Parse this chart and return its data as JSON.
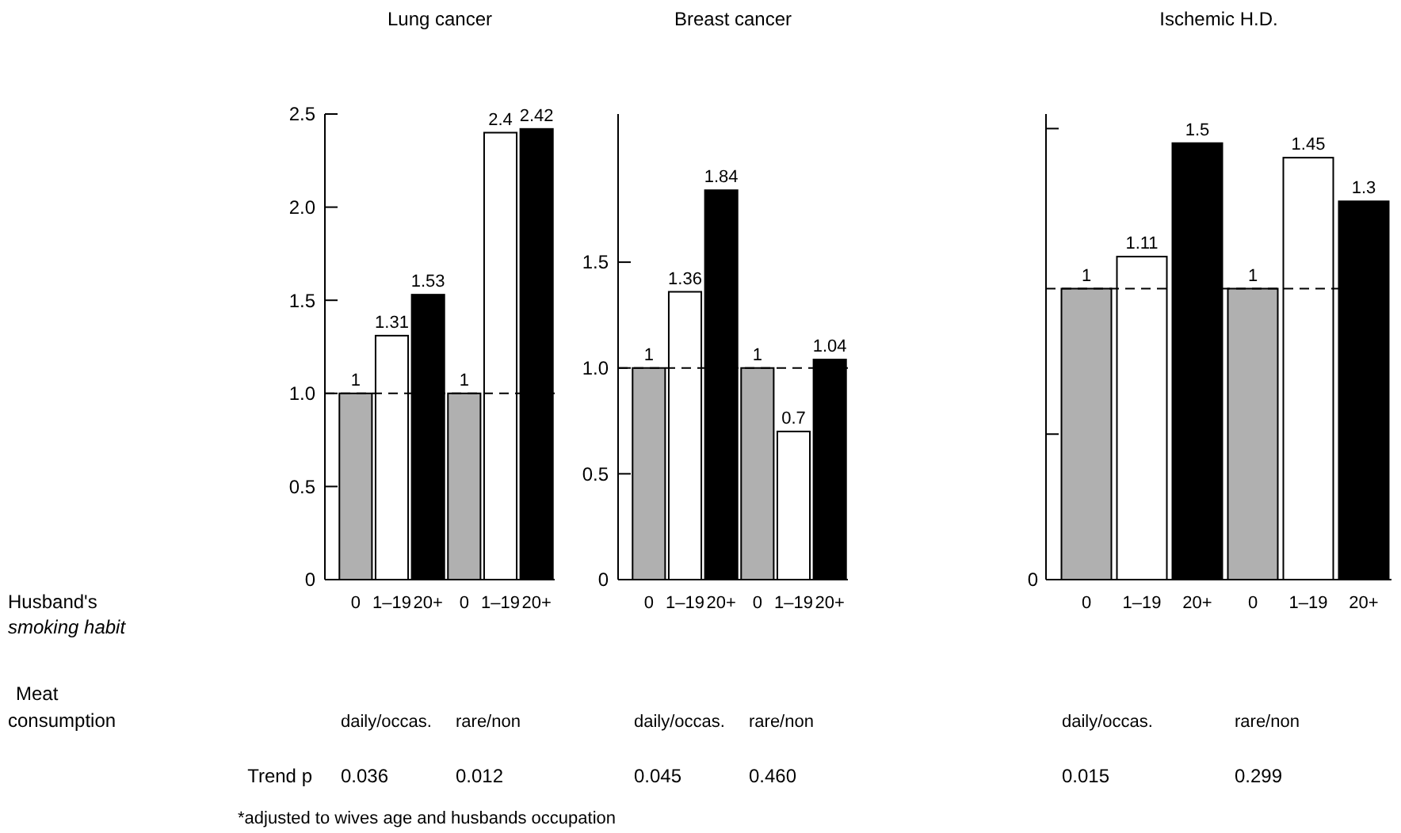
{
  "chart_data": [
    {
      "type": "bar",
      "title": "Lung cancer",
      "categories": [
        "0",
        "1–19",
        "20+",
        "0",
        "1–19",
        "20+"
      ],
      "values": [
        1,
        1.31,
        1.53,
        1,
        2.4,
        2.42
      ],
      "colors": [
        "#b0b0b0",
        "#ffffff",
        "#000000",
        "#b0b0b0",
        "#ffffff",
        "#000000"
      ],
      "data_labels": true,
      "ylim": [
        0,
        2.5
      ],
      "yticks": [
        0,
        0.5,
        {
          "value": 1,
          "label": "1.0"
        },
        1.5,
        {
          "value": 2,
          "label": "2.0"
        },
        2.5
      ],
      "ref_lines": [
        {
          "axis": "y",
          "value": 1,
          "line_style": "dashed"
        }
      ],
      "annotations": [
        "daily/occas.",
        "rare/non",
        "0.036",
        "0.012",
        "Meat consumption",
        "Trend p",
        "*adjusted to wives age and husbands occupation",
        "Husband's smoking habit"
      ]
    },
    {
      "type": "bar",
      "title": "Breast cancer",
      "categories": [
        "0",
        "1–19",
        "20+",
        "0",
        "1–19",
        "20+"
      ],
      "values": [
        1,
        1.36,
        1.84,
        1,
        0.7,
        1.04
      ],
      "colors": [
        "#b0b0b0",
        "#ffffff",
        "#000000",
        "#b0b0b0",
        "#ffffff",
        "#000000"
      ],
      "data_labels": true,
      "ylim": [
        0,
        2.2
      ],
      "yticks": [
        0,
        0.5,
        {
          "value": 1,
          "label": "1.0"
        },
        1.5
      ],
      "ref_lines": [
        {
          "axis": "y",
          "value": 1,
          "line_style": "dashed"
        }
      ],
      "annotations": [
        "daily/occas.",
        "rare/non",
        "0.045",
        "0.460"
      ]
    },
    {
      "type": "bar",
      "title": "Ischemic H.D.",
      "categories": [
        "0",
        "1–19",
        "20+",
        "0",
        "1–19",
        "20+"
      ],
      "values": [
        1,
        1.11,
        1.5,
        1,
        1.45,
        1.3
      ],
      "colors": [
        "#b0b0b0",
        "#ffffff",
        "#000000",
        "#b0b0b0",
        "#ffffff",
        "#000000"
      ],
      "data_labels": true,
      "ylim": [
        0,
        1.6
      ],
      "yticks": [
        {
          "value": 0,
          "label": null
        },
        {
          "value": 0.5,
          "label": null
        },
        {
          "value": 1.55,
          "label": null
        }
      ],
      "ref_lines": [
        {
          "axis": "y",
          "value": 1,
          "line_style": "dashed"
        }
      ],
      "annotations": [
        "daily/occas.",
        "rare/non",
        "0.015",
        "0.299",
        "0"
      ]
    }
  ]
}
